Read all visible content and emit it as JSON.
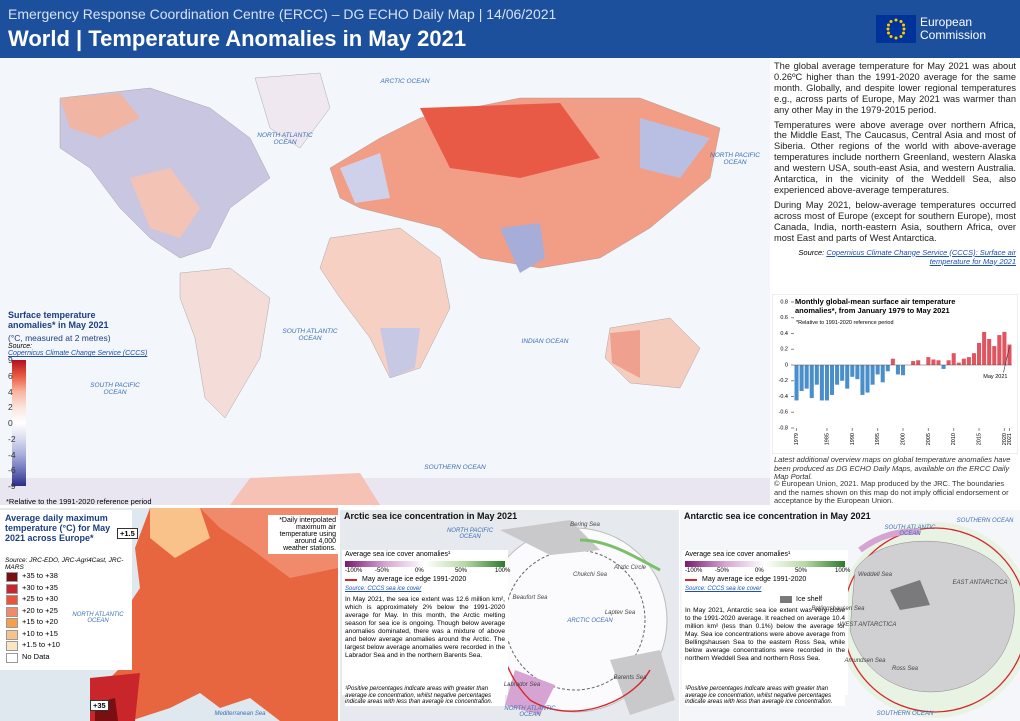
{
  "header": {
    "agency": "Emergency Response Coordination Centre (ERCC) – DG ECHO Daily Map | 14/06/2021",
    "title": "World | Temperature Anomalies in May 2021",
    "logo": "European Commission"
  },
  "world_map": {
    "ocean_labels": [
      "ARCTIC OCEAN",
      "NORTH ATLANTIC OCEAN",
      "NORTH PACIFIC OCEAN",
      "SOUTH ATLANTIC OCEAN",
      "INDIAN OCEAN",
      "SOUTH PACIFIC OCEAN",
      "SOUTHERN OCEAN"
    ],
    "legend": {
      "title": "Surface temperature anomalies* in May 2021",
      "subtitle": "(°C, measured at 2 metres)",
      "source_label": "Source:",
      "source": "Copernicus Climate Change Service (CCCS)",
      "ticks": [
        9,
        6,
        4,
        2,
        0,
        -2,
        -4,
        -6,
        -9
      ]
    },
    "footnote": "*Relative to the 1991-2020 reference period"
  },
  "text": {
    "paragraphs": [
      "The global average temperature for May 2021 was about 0.26ºC higher than the 1991-2020 average for the same month. Globally, and despite lower regional temperatures e.g., across parts of Europe, May 2021 was warmer than any other May in the 1979-2015 period.",
      "Temperatures were above average over northern Africa, the Middle East, The Caucasus, Central Asia and most of Siberia. Other regions of the world with above-average temperatures include northern Greenland, western Alaska and western USA, south-east Asia, and western Australia. Antarctica, in the vicinity of the Weddell Sea, also experienced above-average temperatures.",
      "During May 2021, below-average temperatures occurred across most of Europe (except for southern Europe), most Canada, India, north-eastern Asia, southern Africa, over most East and parts of West Antarctica."
    ],
    "source_label": "Source:",
    "source": "Copernicus Climate Change Service (CCCS): Surface air temperature for May 2021"
  },
  "chart_data": {
    "type": "bar",
    "title": "Monthly global-mean surface air temperature anomalies*, from January 1979 to May 2021",
    "note": "*Relative to 1991-2020 reference period",
    "annotation": "May 2021",
    "x": [
      1979,
      1980,
      1981,
      1982,
      1983,
      1984,
      1985,
      1986,
      1987,
      1988,
      1989,
      1990,
      1991,
      1992,
      1993,
      1994,
      1995,
      1996,
      1997,
      1998,
      1999,
      2000,
      2001,
      2002,
      2003,
      2004,
      2005,
      2006,
      2007,
      2008,
      2009,
      2010,
      2011,
      2012,
      2013,
      2014,
      2015,
      2016,
      2017,
      2018,
      2019,
      2020,
      2021
    ],
    "values": [
      -0.45,
      -0.33,
      -0.3,
      -0.42,
      -0.25,
      -0.45,
      -0.45,
      -0.38,
      -0.25,
      -0.2,
      -0.3,
      -0.15,
      -0.18,
      -0.38,
      -0.35,
      -0.25,
      -0.12,
      -0.22,
      -0.08,
      0.08,
      -0.12,
      -0.13,
      0.0,
      0.05,
      0.06,
      0.0,
      0.1,
      0.07,
      0.06,
      -0.05,
      0.06,
      0.15,
      0.03,
      0.08,
      0.1,
      0.15,
      0.28,
      0.42,
      0.33,
      0.24,
      0.38,
      0.42,
      0.26
    ],
    "colors": {
      "positive": "#e0555f",
      "negative": "#4a8fc9"
    },
    "xlim": [
      1978.5,
      2021.5
    ],
    "xticks": [
      1979,
      1985,
      1990,
      1995,
      2000,
      2005,
      2010,
      2015,
      2020,
      2021
    ],
    "ylim": [
      -0.8,
      0.8
    ],
    "yticks": [
      0.8,
      0.6,
      0.4,
      0.2,
      0,
      -0.2,
      -0.4,
      -0.6,
      -0.8
    ]
  },
  "notes": {
    "portal": "Latest additional overview maps on global temperature anomalies have been produced as DG ECHO Daily Maps, available on the ERCC Daily Map Portal.",
    "copyright": "© European Union, 2021. Map produced by the JRC. The boundaries and the names shown on this map do not imply official endorsement or acceptance by the European Union."
  },
  "europe": {
    "title": "Average daily maximum temperature (°C) for May 2021 across Europe*",
    "source": "Source: JRC-EDO, JRC-Agri4Cast, JRC-MARS",
    "classes": [
      {
        "label": "+35 to +38",
        "color": "#7a0f12"
      },
      {
        "label": "+30 to +35",
        "color": "#c9262c"
      },
      {
        "label": "+25 to +30",
        "color": "#e8553a"
      },
      {
        "label": "+20 to +25",
        "color": "#f08a6a"
      },
      {
        "label": "+15 to +20",
        "color": "#f6a04a"
      },
      {
        "label": "+10 to +15",
        "color": "#f8c28a"
      },
      {
        "label": "+1.5 to +10",
        "color": "#fbe6c4"
      },
      {
        "label": "No Data",
        "color": "#ffffff"
      }
    ],
    "callout": "*Daily interpolated maximum air temperature using around 4,000 weather stations.",
    "min_label": "+1.5",
    "max_label": "+35",
    "ocean_label": "NORTH ATLANTIC OCEAN",
    "sea_label": "Mediterranean Sea"
  },
  "arctic": {
    "title": "Arctic sea ice concentration in May 2021",
    "legend_title": "Average sea ice cover anomalies¹",
    "ticks": [
      "-100%",
      "-50%",
      "0%",
      "50%",
      "100%"
    ],
    "edge": "May average ice edge 1991-2020",
    "source": "Source: CCCS sea ice cover",
    "text": "In May 2021, the sea ice extent was 12.6 million km², which is approximately 2% below the 1991-2020 average for May. In this month, the Arctic melting season for sea ice is ongoing. Though below average anomalies dominated, there was a mixture of above and below average anomalies around the Arctic. The largest below average anomalies were recorded in the Labrador Sea and in the northern Barents Sea.",
    "footnote": "¹Positive percentages indicate areas with greater than average ice concentration, whilst negative percentages indicate areas with less than average ice concentration.",
    "labels": [
      "Bering Sea",
      "NORTH PACIFIC OCEAN",
      "Chukchi Sea",
      "Beaufort Sea",
      "Laptev Sea",
      "ARCTIC OCEAN",
      "Arctic Circle",
      "Barents Sea",
      "Labrador Sea",
      "NORTH ATLANTIC OCEAN"
    ]
  },
  "antarctic": {
    "title": "Antarctic sea ice concentration in May 2021",
    "legend_title": "Average sea ice cover anomalies¹",
    "ticks": [
      "-100%",
      "-50%",
      "0%",
      "50%",
      "100%"
    ],
    "edge": "May average ice edge 1991-2020",
    "source": "Source: CCCS sea ice cover",
    "shelf": "Ice shelf",
    "text": "In May 2021, Antarctic sea ice extent was very close to the 1991-2020 average. It reached on average 10.4 million km² (less than 0.1%) below the average for May. Sea ice concentrations were above average from Bellingshausen Sea to the eastern Ross Sea, while below average concentrations were recorded in the northern Weddell Sea and northern Ross Sea.",
    "footnote": "¹Positive percentages indicate areas with greater than average ice concentration, whilst negative percentages indicate areas with less than average ice concentration.",
    "labels": [
      "SOUTHERN OCEAN",
      "SOUTH ATLANTIC OCEAN",
      "Weddell Sea",
      "EAST ANTARCTICA",
      "WEST ANTARCTICA",
      "Bellingshausen Sea",
      "Amundsen Sea",
      "Ross Sea",
      "SOUTHERN OCEAN"
    ]
  }
}
